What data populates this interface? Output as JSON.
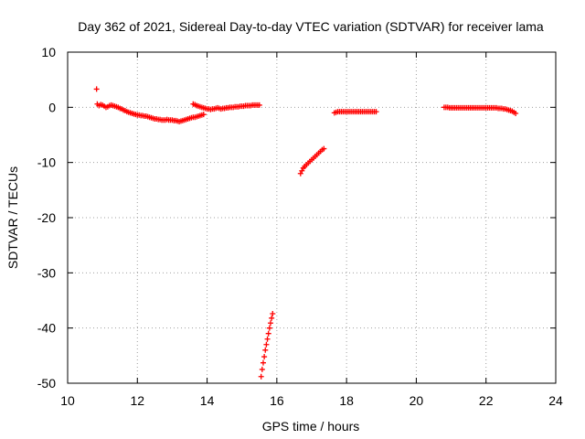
{
  "chart_data": {
    "type": "scatter",
    "title": "Day 362 of 2021, Sidereal Day-to-day VTEC variation (SDTVAR) for receiver lama",
    "xlabel": "GPS time / hours",
    "ylabel": "SDTVAR / TECUs",
    "xlim": [
      10,
      24
    ],
    "ylim": [
      -50,
      10
    ],
    "xticks": [
      "10",
      "12",
      "14",
      "16",
      "18",
      "20",
      "22",
      "24"
    ],
    "yticks": [
      "10",
      "0",
      "-10",
      "-20",
      "-30",
      "-40",
      "-50"
    ],
    "grid": true,
    "marker": "+",
    "color": "#ff0000",
    "series": [
      {
        "name": "SDTVAR",
        "points": [
          [
            10.83,
            3.3
          ],
          [
            10.85,
            0.6
          ],
          [
            10.9,
            0.3
          ],
          [
            10.95,
            0.5
          ],
          [
            11.0,
            0.4
          ],
          [
            11.05,
            0.2
          ],
          [
            11.1,
            0.0
          ],
          [
            11.15,
            0.1
          ],
          [
            11.2,
            0.3
          ],
          [
            11.25,
            0.4
          ],
          [
            11.3,
            0.3
          ],
          [
            11.35,
            0.2
          ],
          [
            11.4,
            0.1
          ],
          [
            11.45,
            0.0
          ],
          [
            11.5,
            -0.2
          ],
          [
            11.55,
            -0.3
          ],
          [
            11.6,
            -0.5
          ],
          [
            11.65,
            -0.6
          ],
          [
            11.7,
            -0.8
          ],
          [
            11.75,
            -0.9
          ],
          [
            11.8,
            -1.0
          ],
          [
            11.85,
            -1.1
          ],
          [
            11.9,
            -1.2
          ],
          [
            11.95,
            -1.3
          ],
          [
            12.0,
            -1.4
          ],
          [
            12.05,
            -1.4
          ],
          [
            12.1,
            -1.5
          ],
          [
            12.15,
            -1.5
          ],
          [
            12.2,
            -1.6
          ],
          [
            12.25,
            -1.6
          ],
          [
            12.3,
            -1.7
          ],
          [
            12.35,
            -1.8
          ],
          [
            12.4,
            -1.9
          ],
          [
            12.45,
            -2.0
          ],
          [
            12.5,
            -2.1
          ],
          [
            12.55,
            -2.1
          ],
          [
            12.6,
            -2.2
          ],
          [
            12.65,
            -2.2
          ],
          [
            12.7,
            -2.3
          ],
          [
            12.75,
            -2.3
          ],
          [
            12.8,
            -2.3
          ],
          [
            12.85,
            -2.2
          ],
          [
            12.9,
            -2.3
          ],
          [
            12.95,
            -2.3
          ],
          [
            13.0,
            -2.3
          ],
          [
            13.05,
            -2.4
          ],
          [
            13.1,
            -2.4
          ],
          [
            13.15,
            -2.5
          ],
          [
            13.2,
            -2.6
          ],
          [
            13.25,
            -2.5
          ],
          [
            13.3,
            -2.4
          ],
          [
            13.35,
            -2.3
          ],
          [
            13.4,
            -2.2
          ],
          [
            13.45,
            -2.1
          ],
          [
            13.5,
            -2.0
          ],
          [
            13.55,
            -1.9
          ],
          [
            13.6,
            -1.8
          ],
          [
            13.65,
            -1.8
          ],
          [
            13.7,
            -1.7
          ],
          [
            13.75,
            -1.6
          ],
          [
            13.8,
            -1.5
          ],
          [
            13.85,
            -1.4
          ],
          [
            13.9,
            -1.3
          ],
          [
            13.6,
            0.6
          ],
          [
            13.65,
            0.5
          ],
          [
            13.7,
            0.3
          ],
          [
            13.75,
            0.2
          ],
          [
            13.8,
            0.1
          ],
          [
            13.85,
            0.0
          ],
          [
            13.9,
            -0.1
          ],
          [
            13.95,
            -0.2
          ],
          [
            14.0,
            -0.3
          ],
          [
            14.05,
            -0.3
          ],
          [
            14.1,
            -0.4
          ],
          [
            14.15,
            -0.3
          ],
          [
            14.2,
            -0.3
          ],
          [
            14.25,
            -0.2
          ],
          [
            14.3,
            -0.1
          ],
          [
            14.35,
            -0.2
          ],
          [
            14.4,
            -0.3
          ],
          [
            14.45,
            -0.2
          ],
          [
            14.5,
            -0.2
          ],
          [
            14.55,
            -0.1
          ],
          [
            14.6,
            -0.1
          ],
          [
            14.65,
            0.0
          ],
          [
            14.7,
            0.0
          ],
          [
            14.75,
            0.0
          ],
          [
            14.8,
            0.1
          ],
          [
            14.85,
            0.1
          ],
          [
            14.9,
            0.1
          ],
          [
            14.95,
            0.2
          ],
          [
            15.0,
            0.2
          ],
          [
            15.05,
            0.2
          ],
          [
            15.1,
            0.3
          ],
          [
            15.15,
            0.3
          ],
          [
            15.2,
            0.3
          ],
          [
            15.25,
            0.3
          ],
          [
            15.3,
            0.4
          ],
          [
            15.35,
            0.4
          ],
          [
            15.4,
            0.4
          ],
          [
            15.45,
            0.4
          ],
          [
            15.5,
            0.4
          ],
          [
            15.55,
            -48.8
          ],
          [
            15.58,
            -47.5
          ],
          [
            15.61,
            -46.3
          ],
          [
            15.64,
            -45.2
          ],
          [
            15.67,
            -44.0
          ],
          [
            15.7,
            -43.0
          ],
          [
            15.73,
            -42.0
          ],
          [
            15.76,
            -41.0
          ],
          [
            15.79,
            -40.0
          ],
          [
            15.82,
            -39.1
          ],
          [
            15.85,
            -38.2
          ],
          [
            15.88,
            -37.4
          ],
          [
            16.68,
            -12.0
          ],
          [
            16.72,
            -11.5
          ],
          [
            16.76,
            -11.0
          ],
          [
            16.8,
            -10.7
          ],
          [
            16.85,
            -10.4
          ],
          [
            16.9,
            -10.1
          ],
          [
            16.95,
            -9.8
          ],
          [
            17.0,
            -9.5
          ],
          [
            17.05,
            -9.2
          ],
          [
            17.1,
            -8.9
          ],
          [
            17.15,
            -8.6
          ],
          [
            17.2,
            -8.3
          ],
          [
            17.25,
            -8.0
          ],
          [
            17.3,
            -7.7
          ],
          [
            17.35,
            -7.5
          ],
          [
            17.65,
            -1.0
          ],
          [
            17.7,
            -0.9
          ],
          [
            17.75,
            -0.8
          ],
          [
            17.8,
            -0.8
          ],
          [
            17.85,
            -0.8
          ],
          [
            17.9,
            -0.8
          ],
          [
            17.95,
            -0.8
          ],
          [
            18.0,
            -0.8
          ],
          [
            18.05,
            -0.8
          ],
          [
            18.1,
            -0.8
          ],
          [
            18.15,
            -0.8
          ],
          [
            18.2,
            -0.8
          ],
          [
            18.25,
            -0.8
          ],
          [
            18.3,
            -0.8
          ],
          [
            18.35,
            -0.8
          ],
          [
            18.4,
            -0.8
          ],
          [
            18.45,
            -0.8
          ],
          [
            18.5,
            -0.8
          ],
          [
            18.55,
            -0.8
          ],
          [
            18.6,
            -0.8
          ],
          [
            18.65,
            -0.8
          ],
          [
            18.7,
            -0.8
          ],
          [
            18.75,
            -0.8
          ],
          [
            18.8,
            -0.8
          ],
          [
            18.85,
            -0.8
          ],
          [
            20.8,
            0.0
          ],
          [
            20.85,
            0.0
          ],
          [
            20.9,
            0.0
          ],
          [
            20.95,
            -0.1
          ],
          [
            21.0,
            -0.1
          ],
          [
            21.05,
            -0.1
          ],
          [
            21.1,
            -0.1
          ],
          [
            21.15,
            -0.1
          ],
          [
            21.2,
            -0.1
          ],
          [
            21.25,
            -0.1
          ],
          [
            21.3,
            -0.1
          ],
          [
            21.35,
            -0.1
          ],
          [
            21.4,
            -0.1
          ],
          [
            21.45,
            -0.1
          ],
          [
            21.5,
            -0.1
          ],
          [
            21.55,
            -0.1
          ],
          [
            21.6,
            -0.1
          ],
          [
            21.65,
            -0.1
          ],
          [
            21.7,
            -0.1
          ],
          [
            21.75,
            -0.1
          ],
          [
            21.8,
            -0.1
          ],
          [
            21.85,
            -0.1
          ],
          [
            21.9,
            -0.1
          ],
          [
            21.95,
            -0.1
          ],
          [
            22.0,
            -0.1
          ],
          [
            22.05,
            -0.1
          ],
          [
            22.1,
            -0.1
          ],
          [
            22.15,
            -0.1
          ],
          [
            22.2,
            -0.1
          ],
          [
            22.25,
            -0.1
          ],
          [
            22.3,
            -0.1
          ],
          [
            22.35,
            -0.2
          ],
          [
            22.4,
            -0.2
          ],
          [
            22.45,
            -0.2
          ],
          [
            22.5,
            -0.3
          ],
          [
            22.55,
            -0.3
          ],
          [
            22.6,
            -0.4
          ],
          [
            22.65,
            -0.5
          ],
          [
            22.7,
            -0.6
          ],
          [
            22.75,
            -0.7
          ],
          [
            22.8,
            -0.9
          ],
          [
            22.85,
            -1.1
          ]
        ]
      }
    ]
  }
}
